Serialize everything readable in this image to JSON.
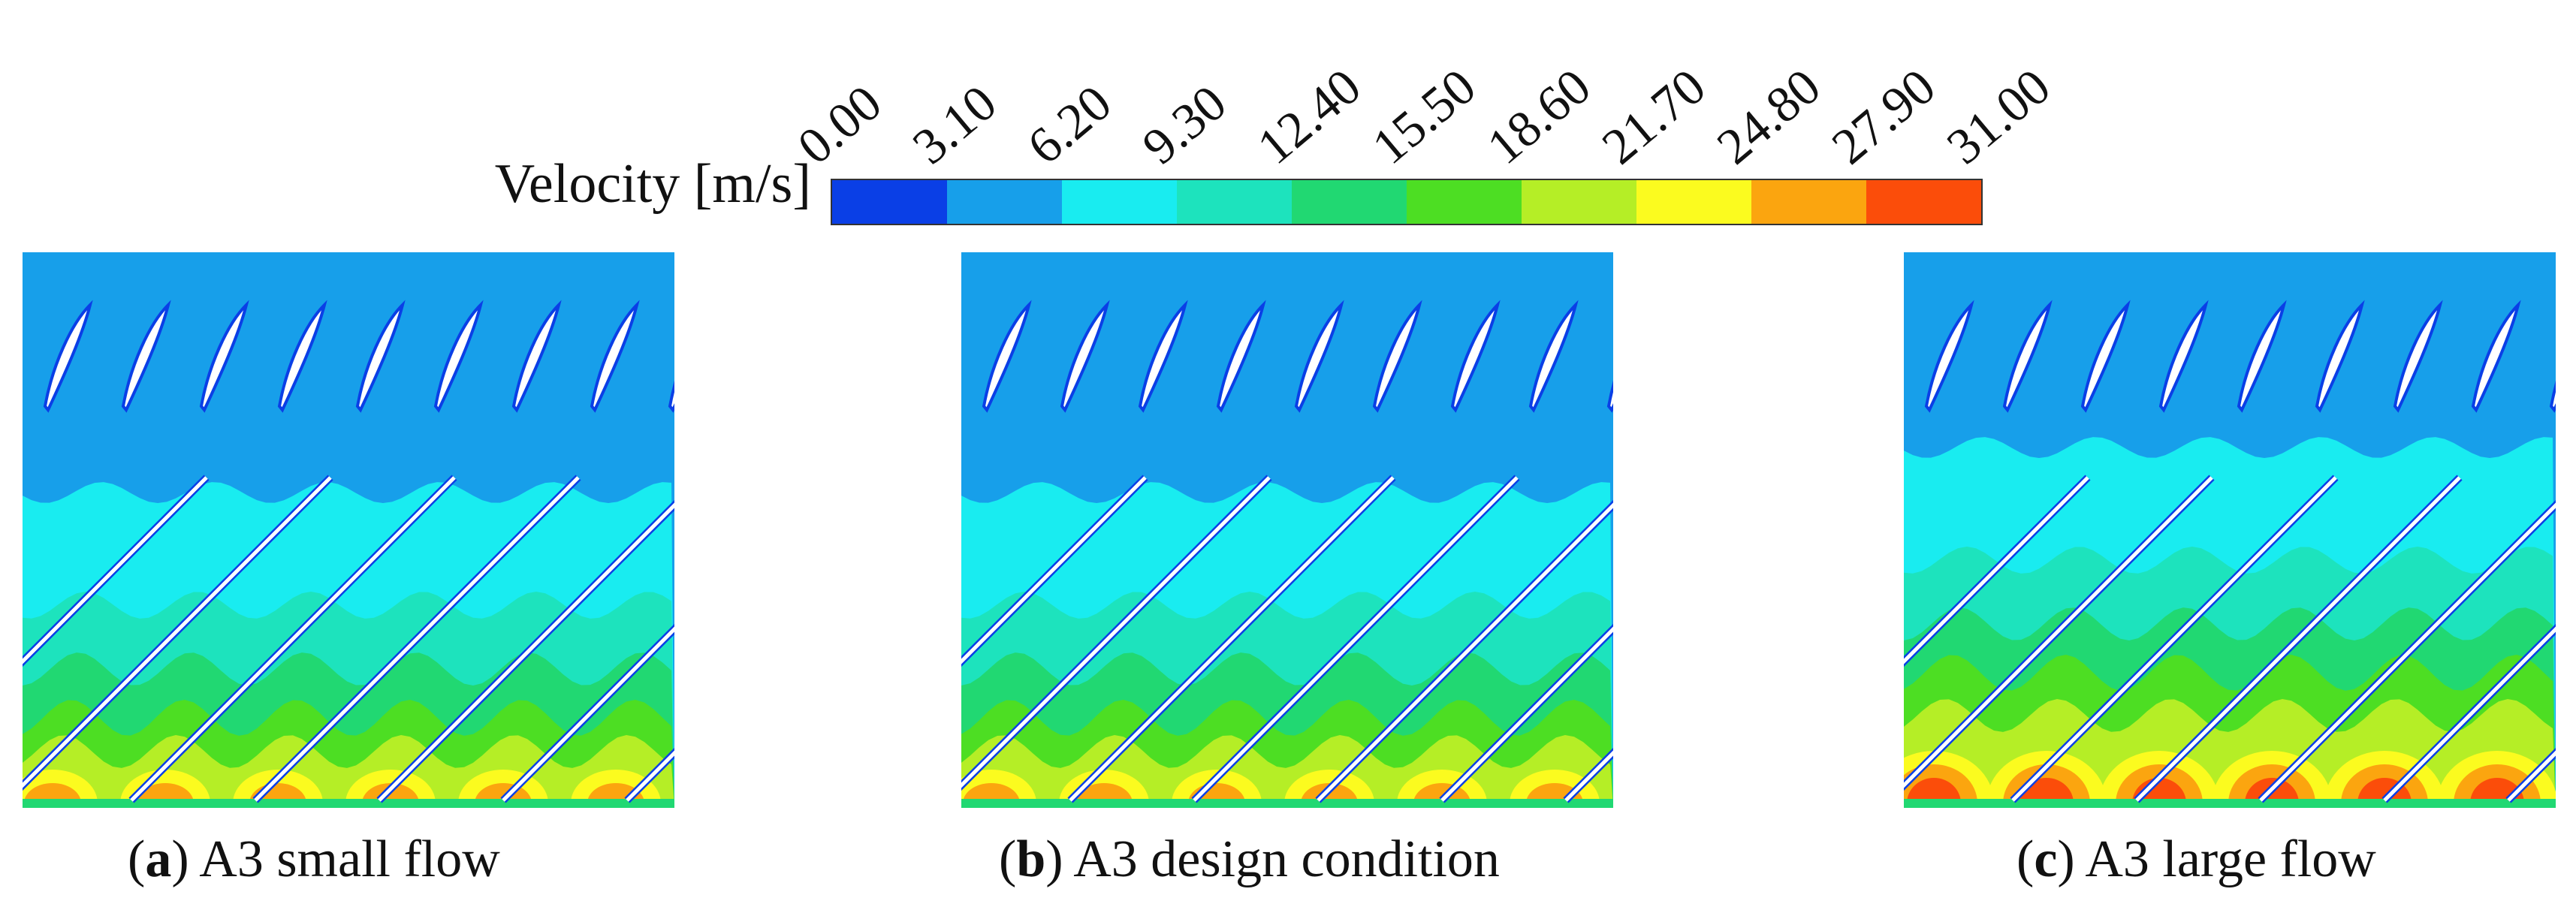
{
  "legend": {
    "label": "Velocity [m/s]",
    "ticks": [
      "0.00",
      "3.10",
      "6.20",
      "9.30",
      "12.40",
      "15.50",
      "18.60",
      "21.70",
      "24.80",
      "27.90",
      "31.00"
    ],
    "colors": [
      "#0a3fe6",
      "#179fea",
      "#19ecf0",
      "#1de3bd",
      "#21d872",
      "#4dde23",
      "#b5ee26",
      "#fbfb1f",
      "#fba50f",
      "#fb4d0a"
    ]
  },
  "panels": [
    {
      "letter": "a",
      "caption": "A3 small flow"
    },
    {
      "letter": "b",
      "caption": "A3 design condition"
    },
    {
      "letter": "c",
      "caption": "A3 large flow"
    }
  ]
}
